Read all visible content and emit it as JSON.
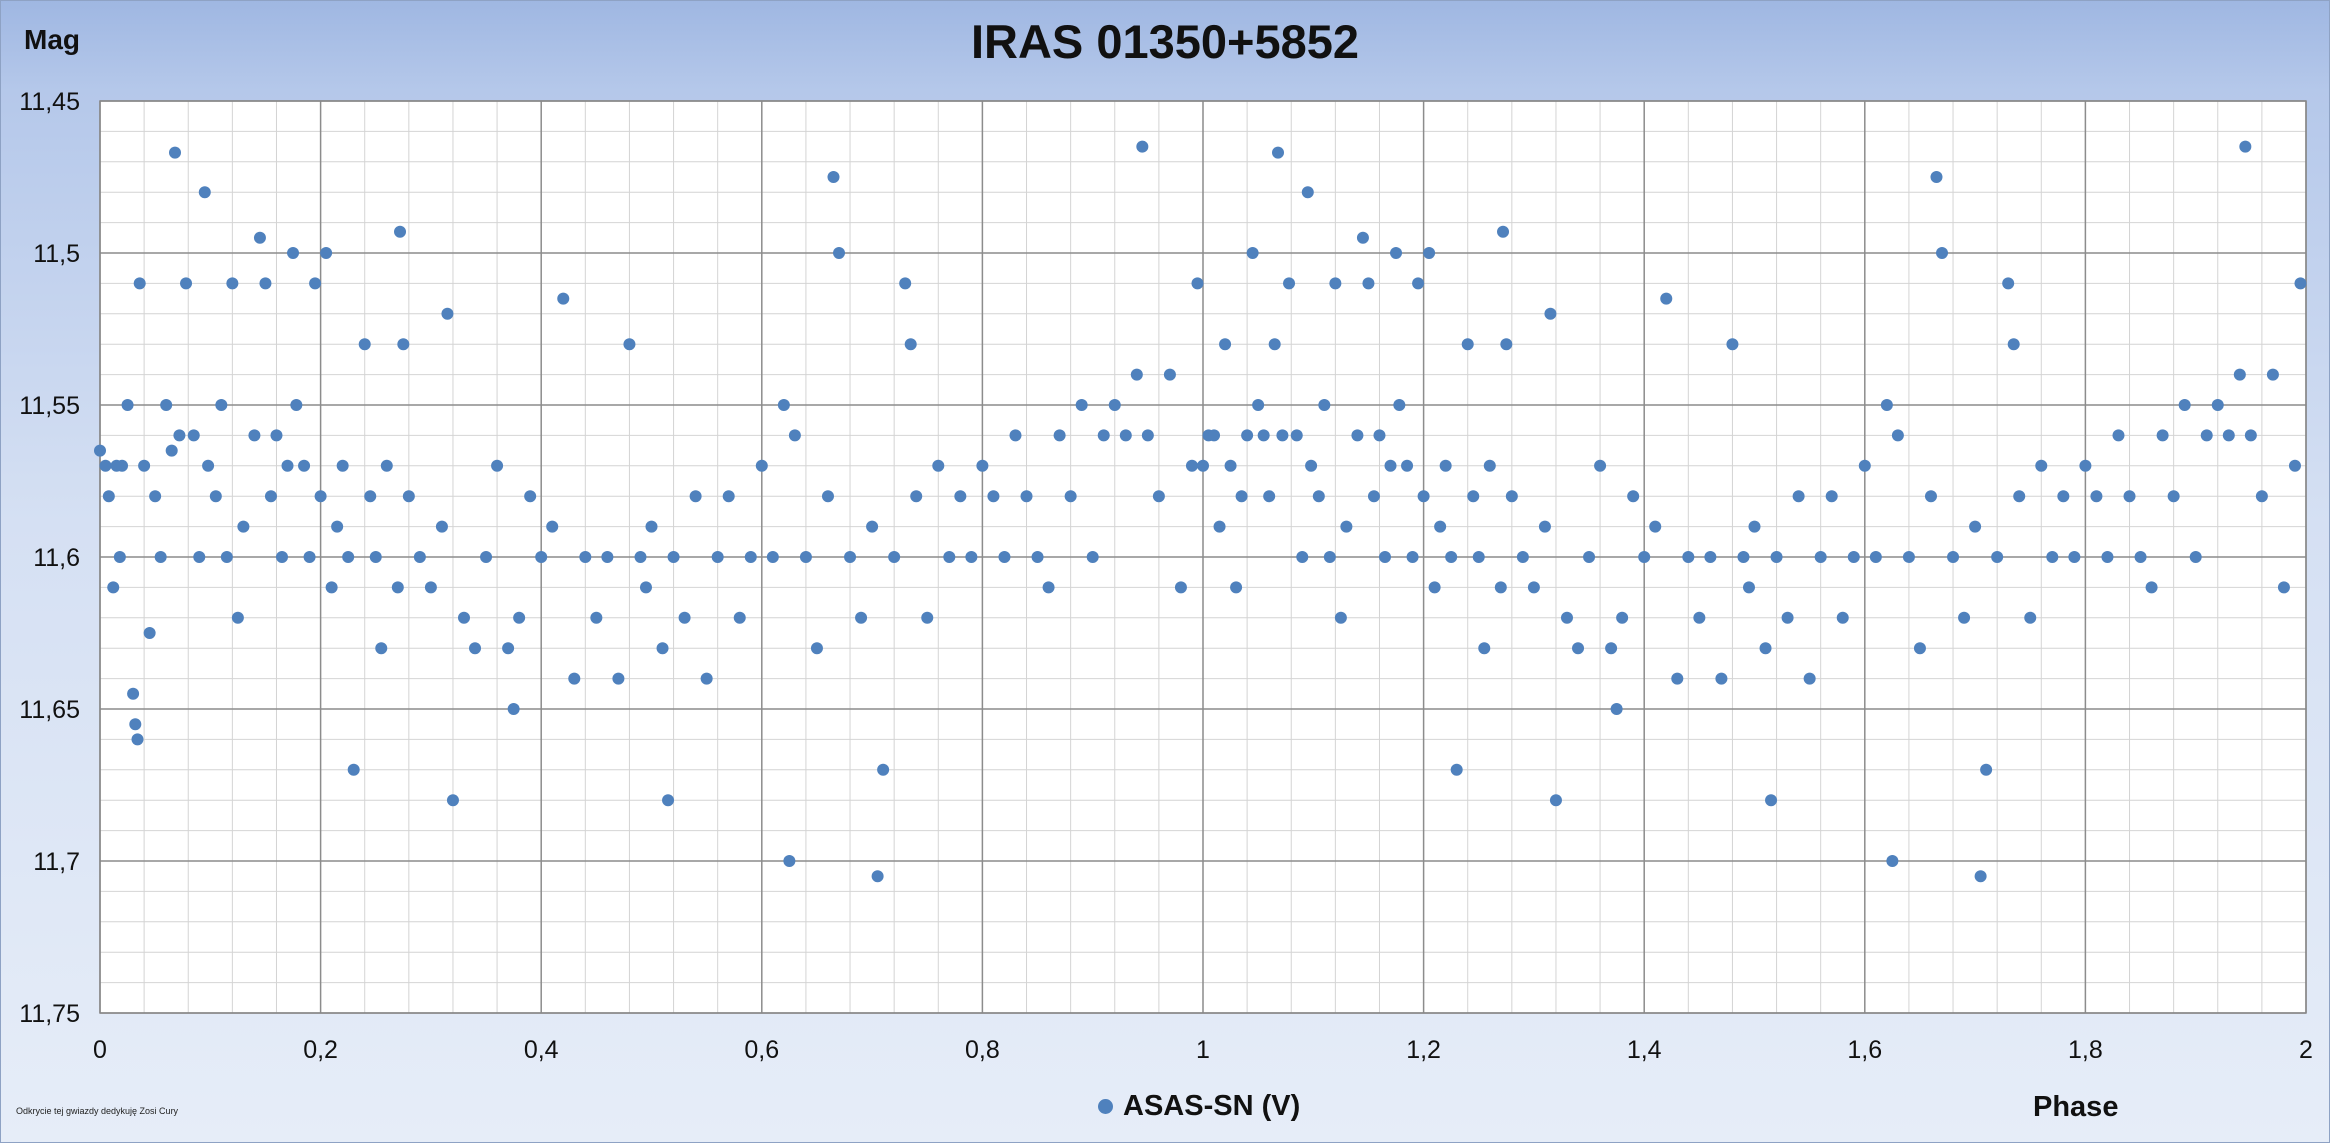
{
  "chart_data": {
    "type": "scatter",
    "title": "IRAS 01350+5852",
    "ylabel": "Mag",
    "xlabel": "Phase",
    "xlim": [
      0,
      2
    ],
    "ylim": [
      11.45,
      11.75
    ],
    "y_inverted": true,
    "grid": true,
    "legend_position": "bottom-center",
    "x_ticks": [
      "0",
      "0,2",
      "0,4",
      "0,6",
      "0,8",
      "1",
      "1,2",
      "1,4",
      "1,6",
      "1,8",
      "2"
    ],
    "x_tick_values": [
      0,
      0.2,
      0.4,
      0.6,
      0.8,
      1,
      1.2,
      1.4,
      1.6,
      1.8,
      2
    ],
    "y_ticks": [
      "11,45",
      "11,5",
      "11,55",
      "11,6",
      "11,65",
      "11,7",
      "11,75"
    ],
    "y_tick_values": [
      11.45,
      11.5,
      11.55,
      11.6,
      11.65,
      11.7,
      11.75
    ],
    "series": [
      {
        "name": "ASAS-SN (V)",
        "color": "#4f81bd",
        "x": [
          0.0,
          0.005,
          0.008,
          0.012,
          0.015,
          0.018,
          0.02,
          0.025,
          0.03,
          0.032,
          0.034,
          0.036,
          0.04,
          0.045,
          0.05,
          0.055,
          0.06,
          0.065,
          0.068,
          0.072,
          0.078,
          0.085,
          0.09,
          0.095,
          0.098,
          0.105,
          0.11,
          0.115,
          0.12,
          0.125,
          0.13,
          0.14,
          0.145,
          0.15,
          0.155,
          0.16,
          0.165,
          0.17,
          0.175,
          0.178,
          0.185,
          0.19,
          0.195,
          0.2,
          0.205,
          0.21,
          0.215,
          0.22,
          0.225,
          0.23,
          0.24,
          0.245,
          0.25,
          0.255,
          0.26,
          0.27,
          0.272,
          0.275,
          0.28,
          0.29,
          0.3,
          0.31,
          0.315,
          0.32,
          0.33,
          0.34,
          0.35,
          0.36,
          0.37,
          0.375,
          0.38,
          0.39,
          0.4,
          0.41,
          0.42,
          0.43,
          0.44,
          0.45,
          0.46,
          0.47,
          0.48,
          0.49,
          0.495,
          0.5,
          0.51,
          0.515,
          0.52,
          0.53,
          0.54,
          0.55,
          0.56,
          0.57,
          0.58,
          0.59,
          0.6,
          0.61,
          0.62,
          0.625,
          0.63,
          0.64,
          0.65,
          0.66,
          0.665,
          0.67,
          0.68,
          0.69,
          0.7,
          0.705,
          0.71,
          0.72,
          0.73,
          0.735,
          0.74,
          0.75,
          0.76,
          0.77,
          0.78,
          0.79,
          0.8,
          0.81,
          0.82,
          0.83,
          0.84,
          0.85,
          0.86,
          0.87,
          0.88,
          0.89,
          0.9,
          0.91,
          0.92,
          0.93,
          0.94,
          0.945,
          0.95,
          0.96,
          0.97,
          0.98,
          0.99,
          0.995,
          1.0,
          1.005,
          1.01,
          1.015,
          1.02,
          1.025,
          1.03,
          1.035,
          1.04,
          1.045,
          1.05,
          1.055,
          1.06,
          1.065,
          1.068,
          1.072,
          1.078,
          1.085,
          1.09,
          1.095,
          1.098,
          1.105,
          1.11,
          1.115,
          1.12,
          1.125,
          1.13,
          1.14,
          1.145,
          1.15,
          1.155,
          1.16,
          1.165,
          1.17,
          1.175,
          1.178,
          1.185,
          1.19,
          1.195,
          1.2,
          1.205,
          1.21,
          1.215,
          1.22,
          1.225,
          1.23,
          1.24,
          1.245,
          1.25,
          1.255,
          1.26,
          1.27,
          1.272,
          1.275,
          1.28,
          1.29,
          1.3,
          1.31,
          1.315,
          1.32,
          1.33,
          1.34,
          1.35,
          1.36,
          1.37,
          1.375,
          1.38,
          1.39,
          1.4,
          1.41,
          1.42,
          1.43,
          1.44,
          1.45,
          1.46,
          1.47,
          1.48,
          1.49,
          1.495,
          1.5,
          1.51,
          1.515,
          1.52,
          1.53,
          1.54,
          1.55,
          1.56,
          1.57,
          1.58,
          1.59,
          1.6,
          1.61,
          1.62,
          1.625,
          1.63,
          1.64,
          1.65,
          1.66,
          1.665,
          1.67,
          1.68,
          1.69,
          1.7,
          1.705,
          1.71,
          1.72,
          1.73,
          1.735,
          1.74,
          1.75,
          1.76,
          1.77,
          1.78,
          1.79,
          1.8,
          1.81,
          1.82,
          1.83,
          1.84,
          1.85,
          1.86,
          1.87,
          1.88,
          1.89,
          1.9,
          1.91,
          1.92,
          1.93,
          1.94,
          1.945,
          1.95,
          1.96,
          1.97,
          1.98,
          1.99,
          1.995
        ],
        "y": [
          11.565,
          11.57,
          11.58,
          11.61,
          11.57,
          11.6,
          11.57,
          11.55,
          11.645,
          11.655,
          11.66,
          11.51,
          11.57,
          11.625,
          11.58,
          11.6,
          11.55,
          11.565,
          11.467,
          11.56,
          11.51,
          11.56,
          11.6,
          11.48,
          11.57,
          11.58,
          11.55,
          11.6,
          11.51,
          11.62,
          11.59,
          11.56,
          11.495,
          11.51,
          11.58,
          11.56,
          11.6,
          11.57,
          11.5,
          11.55,
          11.57,
          11.6,
          11.51,
          11.58,
          11.5,
          11.61,
          11.59,
          11.57,
          11.6,
          11.67,
          11.53,
          11.58,
          11.6,
          11.63,
          11.57,
          11.61,
          11.493,
          11.53,
          11.58,
          11.6,
          11.61,
          11.59,
          11.52,
          11.68,
          11.62,
          11.63,
          11.6,
          11.57,
          11.63,
          11.65,
          11.62,
          11.58,
          11.6,
          11.59,
          11.515,
          11.64,
          11.6,
          11.62,
          11.6,
          11.64,
          11.53,
          11.6,
          11.61,
          11.59,
          11.63,
          11.68,
          11.6,
          11.62,
          11.58,
          11.64,
          11.6,
          11.58,
          11.62,
          11.6,
          11.57,
          11.6,
          11.55,
          11.7,
          11.56,
          11.6,
          11.63,
          11.58,
          11.475,
          11.5,
          11.6,
          11.62,
          11.59,
          11.705,
          11.67,
          11.6,
          11.51,
          11.53,
          11.58,
          11.62,
          11.57,
          11.6,
          11.58,
          11.6,
          11.57,
          11.58,
          11.6,
          11.56,
          11.58,
          11.6,
          11.61,
          11.56,
          11.58,
          11.55,
          11.6,
          11.56,
          11.55,
          11.56,
          11.54,
          11.465,
          11.56,
          11.58,
          11.54,
          11.61,
          11.57,
          11.51,
          11.57,
          11.56,
          11.56,
          11.59,
          11.53,
          11.57,
          11.61,
          11.58,
          11.56,
          11.5,
          11.55,
          11.56,
          11.58,
          11.53,
          11.467,
          11.56,
          11.51,
          11.56,
          11.6,
          11.48,
          11.57,
          11.58,
          11.55,
          11.6,
          11.51,
          11.62,
          11.59,
          11.56,
          11.495,
          11.51,
          11.58,
          11.56,
          11.6,
          11.57,
          11.5,
          11.55,
          11.57,
          11.6,
          11.51,
          11.58,
          11.5,
          11.61,
          11.59,
          11.57,
          11.6,
          11.67,
          11.53,
          11.58,
          11.6,
          11.63,
          11.57,
          11.61,
          11.493,
          11.53,
          11.58,
          11.6,
          11.61,
          11.59,
          11.52,
          11.68,
          11.62,
          11.63,
          11.6,
          11.57,
          11.63,
          11.65,
          11.62,
          11.58,
          11.6,
          11.59,
          11.515,
          11.64,
          11.6,
          11.62,
          11.6,
          11.64,
          11.53,
          11.6,
          11.61,
          11.59,
          11.63,
          11.68,
          11.6,
          11.62,
          11.58,
          11.64,
          11.6,
          11.58,
          11.62,
          11.6,
          11.57,
          11.6,
          11.55,
          11.7,
          11.56,
          11.6,
          11.63,
          11.58,
          11.475,
          11.5,
          11.6,
          11.62,
          11.59,
          11.705,
          11.67,
          11.6,
          11.51,
          11.53,
          11.58,
          11.62,
          11.57,
          11.6,
          11.58,
          11.6,
          11.57,
          11.58,
          11.6,
          11.56,
          11.58,
          11.6,
          11.61,
          11.56,
          11.58,
          11.55,
          11.6,
          11.56,
          11.55,
          11.56,
          11.54,
          11.465,
          11.56,
          11.58,
          11.54,
          11.61,
          11.57,
          11.51
        ]
      }
    ]
  },
  "footnote": "Odkrycie tej gwiazdy dedykuję Zosi Cury"
}
